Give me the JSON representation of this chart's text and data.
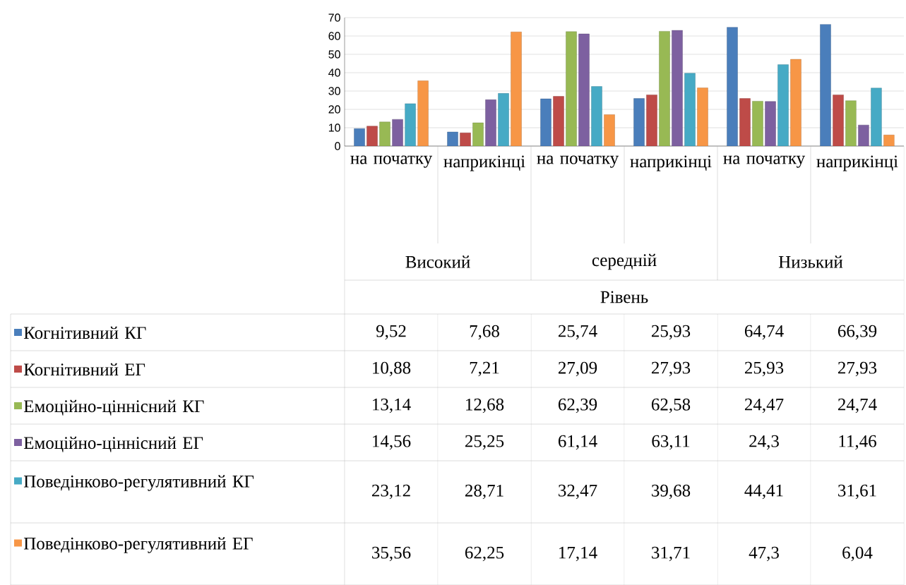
{
  "chart_data": {
    "type": "bar",
    "categories": [
      "на початку",
      "наприкінці",
      "на початку",
      "наприкінці",
      "на початку",
      "наприкінці"
    ],
    "annotations": [
      "Високий",
      "середній",
      "Низький",
      "Рівень"
    ],
    "ylim": [
      0,
      70
    ],
    "yticks": [
      0,
      10,
      20,
      30,
      40,
      50,
      60,
      70
    ],
    "grid": "y",
    "legend": "bottom",
    "series": [
      {
        "name": "Когнітивний КГ",
        "color": "#4a7ebb",
        "values": [
          9.52,
          7.68,
          25.74,
          25.93,
          64.74,
          66.39
        ],
        "value_labels": [
          "9,52",
          "7,68",
          "25,74",
          "25,93",
          "64,74",
          "66,39"
        ]
      },
      {
        "name": "Когнітивний ЕГ",
        "color": "#be4b48",
        "values": [
          10.88,
          7.21,
          27.09,
          27.93,
          25.93,
          27.93
        ],
        "value_labels": [
          "10,88",
          "7,21",
          "27,09",
          "27,93",
          "25,93",
          "27,93"
        ]
      },
      {
        "name": "Емоційно-ціннісний КГ",
        "color": "#98b954",
        "values": [
          13.14,
          12.68,
          62.39,
          62.58,
          24.47,
          24.74
        ],
        "value_labels": [
          "13,14",
          "12,68",
          "62,39",
          "62,58",
          "24,47",
          "24,74"
        ]
      },
      {
        "name": "Емоційно-ціннісний ЕГ",
        "color": "#7d60a0",
        "values": [
          14.56,
          25.25,
          61.14,
          63.11,
          24.3,
          11.46
        ],
        "value_labels": [
          "14,56",
          "25,25",
          "61,14",
          "63,11",
          "24,3",
          "11,46"
        ]
      },
      {
        "name": "Поведінково-регулятивний КГ",
        "color": "#46aac5",
        "values": [
          23.12,
          28.71,
          32.47,
          39.68,
          44.41,
          31.61
        ],
        "value_labels": [
          "23,12",
          "28,71",
          "32,47",
          "39,68",
          "44,41",
          "31,61"
        ]
      },
      {
        "name": "Поведінково-регулятивний ЕГ",
        "color": "#f79646",
        "values": [
          35.56,
          62.25,
          17.14,
          31.71,
          47.3,
          6.04
        ],
        "value_labels": [
          "35,56",
          "62,25",
          "17,14",
          "31,71",
          "47,3",
          "6,04"
        ]
      }
    ]
  }
}
